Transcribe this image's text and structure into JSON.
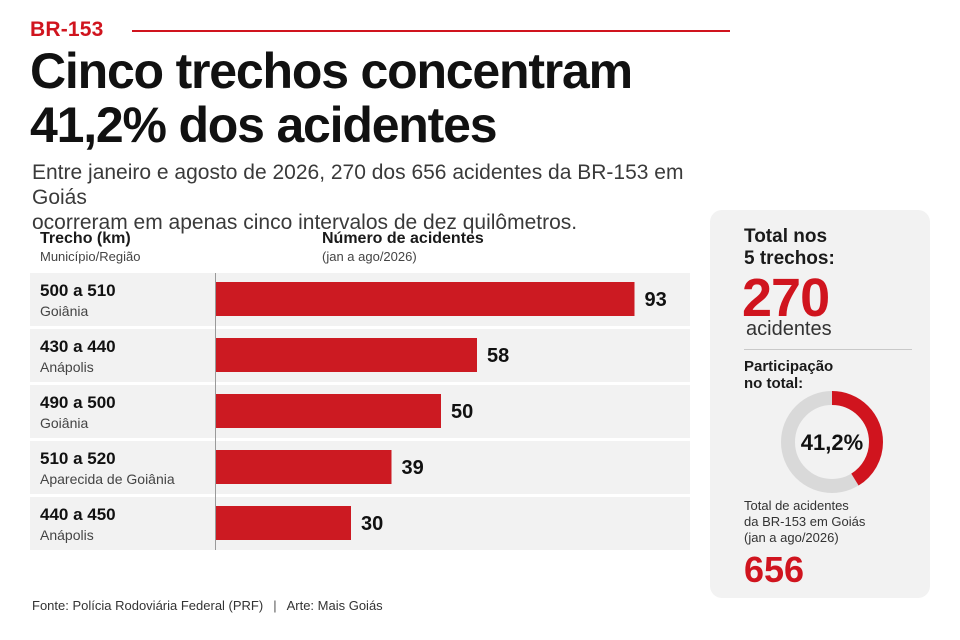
{
  "header": {
    "kicker": "BR-153",
    "title_line1": "Cinco trechos concentram",
    "title_line2": "41,2% dos acidentes",
    "subtitle_line1": "Entre janeiro e agosto de 2026, 270 dos 656 acidentes da BR-153 em Goiás",
    "subtitle_line2": "ocorreram em apenas cinco intervalos de dez quilômetros."
  },
  "table_header": {
    "left_main": "Trecho (km)",
    "left_sub": "Município/Região",
    "right_main": "Número de acidentes",
    "right_sub": "(jan a ago/2026)"
  },
  "chart_data": {
    "type": "bar",
    "orientation": "horizontal",
    "categories": [
      "500 a 510",
      "430 a 440",
      "490 a 500",
      "510 a 520",
      "440 a 450"
    ],
    "regions": [
      "Goiânia",
      "Anápolis",
      "Goiânia",
      "Aparecida de Goiânia",
      "Anápolis"
    ],
    "values": [
      93,
      58,
      50,
      39,
      30
    ],
    "xlabel": "Número de acidentes",
    "ylabel": "Trecho (km)",
    "xlim": [
      0,
      100
    ],
    "grid": false,
    "bar_color": "#cc1a22"
  },
  "sidebar": {
    "total_label_line1": "Total nos",
    "total_label_line2": "5 trechos:",
    "total_value": "270",
    "total_unit": "acidentes",
    "share_label_line1": "Participação",
    "share_label_line2": "no total:",
    "share_value": 41.2,
    "share_text": "41,2%",
    "all_label_line1": "Total de acidentes",
    "all_label_line2": "da BR-153 em Goiás",
    "all_label_line3": "(jan a ago/2026)",
    "all_value": "656"
  },
  "footer": {
    "source": "Fonte: Polícia Rodoviária Federal (PRF)",
    "separator": "|",
    "art": "Arte: Mais Goiás"
  },
  "colors": {
    "accent": "#d0141e",
    "bar": "#cc1a22",
    "panel": "#f2f2f2",
    "donut_track": "#d9d9d9"
  }
}
